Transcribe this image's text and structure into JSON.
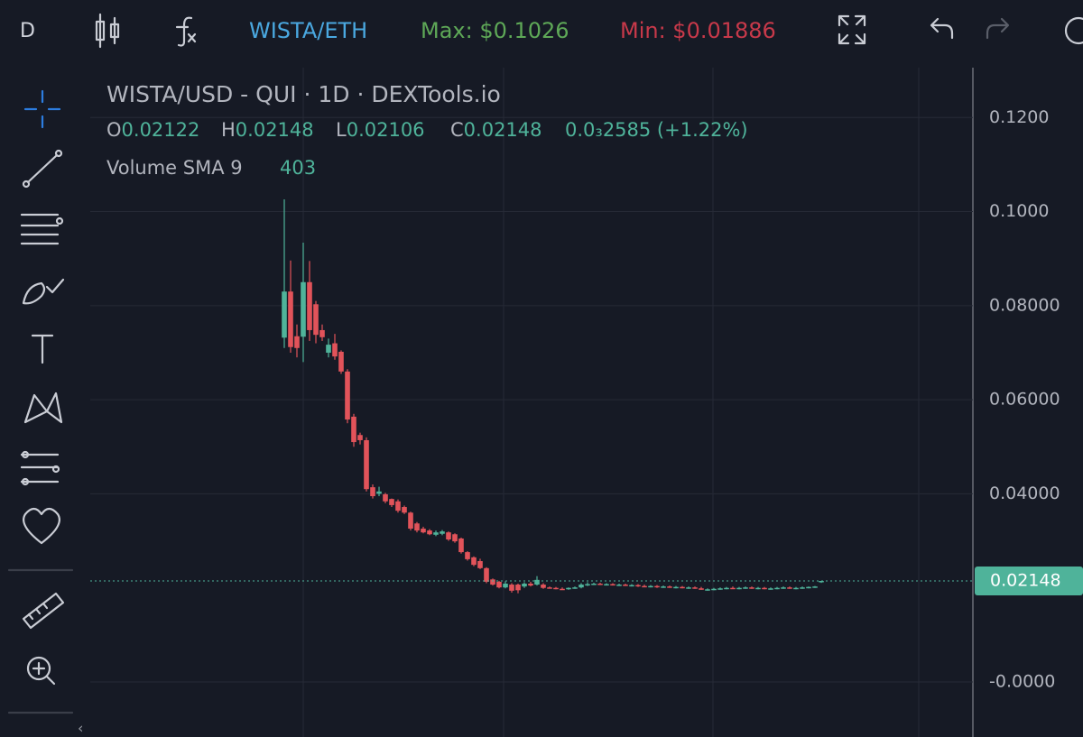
{
  "toolbar": {
    "menu": "D",
    "pair": "WISTA/ETH",
    "max": "Max: $0.1026",
    "min": "Min: $0.01886"
  },
  "chart_data": {
    "type": "candlestick",
    "title": "WISTA/USD - QUI · 1D · DEXTools.io",
    "ohlc_letters": [
      "O",
      "H",
      "L",
      "C"
    ],
    "change_label": "0.0₃2585 (+1.22%)",
    "volume_label": "Volume SMA 9",
    "volume_value": "403",
    "up_color": "#4fb39a",
    "down_color": "#e2535a",
    "ylim": [
      -0.0117,
      0.1306
    ],
    "yticks": [
      {
        "value": 0.12,
        "label": "0.1200"
      },
      {
        "value": 0.1,
        "label": "0.1000"
      },
      {
        "value": 0.08,
        "label": "0.08000"
      },
      {
        "value": 0.06,
        "label": "0.06000"
      },
      {
        "value": 0.04,
        "label": "0.04000"
      },
      {
        "value": 0,
        "label": "-0.0000"
      }
    ],
    "grid": true,
    "open": [
      0.0732,
      0.083,
      0.0735,
      0.0734,
      0.085,
      0.0803,
      0.0748,
      0.07,
      0.072,
      0.0702,
      0.066,
      0.0564,
      0.0525,
      0.0514,
      0.0414,
      0.04,
      0.0399,
      0.0389,
      0.0384,
      0.0372,
      0.036,
      0.0337,
      0.0326,
      0.0322,
      0.0313,
      0.0315,
      0.0318,
      0.0314,
      0.0305,
      0.0276,
      0.0265,
      0.0257,
      0.0242,
      0.0218,
      0.0213,
      0.0201,
      0.0207,
      0.0207,
      0.0203,
      0.0209,
      0.0207,
      0.0207,
      0.0201,
      0.02,
      0.0198,
      0.0197,
      0.02,
      0.0201,
      0.0207,
      0.0208,
      0.0209,
      0.0207,
      0.0208,
      0.0206,
      0.0207,
      0.0205,
      0.0206,
      0.0204,
      0.0203,
      0.0204,
      0.0202,
      0.0203,
      0.0201,
      0.0202,
      0.02,
      0.0201,
      0.0199,
      0.0196,
      0.0197,
      0.0198,
      0.0199,
      0.02,
      0.0199,
      0.02,
      0.0201,
      0.0199,
      0.02,
      0.0198,
      0.0199,
      0.02,
      0.0201,
      0.0199,
      0.02,
      0.0201,
      0.0202,
      0.02122
    ],
    "high": [
      0.1026,
      0.0896,
      0.076,
      0.0934,
      0.0895,
      0.081,
      0.076,
      0.073,
      0.074,
      0.0705,
      0.0665,
      0.057,
      0.053,
      0.052,
      0.042,
      0.0415,
      0.0402,
      0.039,
      0.0388,
      0.0375,
      0.0362,
      0.034,
      0.033,
      0.0325,
      0.0322,
      0.0323,
      0.032,
      0.0316,
      0.0307,
      0.0278,
      0.0267,
      0.0262,
      0.0244,
      0.022,
      0.0215,
      0.0214,
      0.021,
      0.0209,
      0.0212,
      0.0213,
      0.0225,
      0.021,
      0.0203,
      0.0202,
      0.0201,
      0.0201,
      0.0203,
      0.021,
      0.0212,
      0.0211,
      0.0211,
      0.021,
      0.021,
      0.0209,
      0.0209,
      0.0208,
      0.0208,
      0.0207,
      0.0206,
      0.0206,
      0.0205,
      0.0205,
      0.0204,
      0.0204,
      0.0203,
      0.0203,
      0.0202,
      0.0199,
      0.02,
      0.0201,
      0.0202,
      0.0203,
      0.0202,
      0.0203,
      0.0203,
      0.0202,
      0.0202,
      0.0201,
      0.0202,
      0.0203,
      0.0203,
      0.0202,
      0.0203,
      0.0203,
      0.0204,
      0.02148
    ],
    "low": [
      0.071,
      0.07,
      0.069,
      0.068,
      0.0725,
      0.072,
      0.0725,
      0.069,
      0.0685,
      0.0655,
      0.055,
      0.05,
      0.0505,
      0.0405,
      0.039,
      0.0395,
      0.038,
      0.0372,
      0.036,
      0.0357,
      0.0322,
      0.0318,
      0.0316,
      0.0312,
      0.031,
      0.0312,
      0.03,
      0.0296,
      0.0273,
      0.0258,
      0.0246,
      0.024,
      0.021,
      0.0205,
      0.0199,
      0.0199,
      0.019,
      0.01886,
      0.02,
      0.0203,
      0.0205,
      0.0198,
      0.0199,
      0.0197,
      0.0196,
      0.0196,
      0.0198,
      0.0199,
      0.0204,
      0.0206,
      0.0206,
      0.0205,
      0.0205,
      0.0204,
      0.0204,
      0.0203,
      0.0202,
      0.0202,
      0.0201,
      0.02,
      0.02,
      0.02,
      0.0199,
      0.0199,
      0.0198,
      0.0198,
      0.0196,
      0.0194,
      0.0195,
      0.0196,
      0.0197,
      0.0198,
      0.0197,
      0.0198,
      0.0198,
      0.0197,
      0.0197,
      0.0196,
      0.0197,
      0.0198,
      0.0198,
      0.0197,
      0.0198,
      0.0199,
      0.02,
      0.02106
    ],
    "close": [
      0.083,
      0.0712,
      0.071,
      0.085,
      0.0748,
      0.0738,
      0.0733,
      0.0717,
      0.0692,
      0.066,
      0.0558,
      0.051,
      0.0514,
      0.041,
      0.0395,
      0.0405,
      0.0384,
      0.0376,
      0.0364,
      0.036,
      0.0326,
      0.0322,
      0.0318,
      0.0314,
      0.0318,
      0.032,
      0.0303,
      0.0299,
      0.0276,
      0.0261,
      0.0249,
      0.0242,
      0.0213,
      0.0207,
      0.0201,
      0.0209,
      0.0194,
      0.0195,
      0.0209,
      0.0205,
      0.0217,
      0.02,
      0.02,
      0.0198,
      0.0197,
      0.02,
      0.0201,
      0.0207,
      0.0208,
      0.0209,
      0.0207,
      0.0208,
      0.0206,
      0.0207,
      0.0205,
      0.0206,
      0.0204,
      0.0203,
      0.0204,
      0.0202,
      0.0203,
      0.0201,
      0.0202,
      0.02,
      0.0201,
      0.0199,
      0.0196,
      0.0197,
      0.0198,
      0.0199,
      0.02,
      0.0199,
      0.02,
      0.0201,
      0.0199,
      0.02,
      0.0198,
      0.0199,
      0.02,
      0.0201,
      0.0199,
      0.02,
      0.0201,
      0.0202,
      0.0203,
      0.02148
    ]
  }
}
